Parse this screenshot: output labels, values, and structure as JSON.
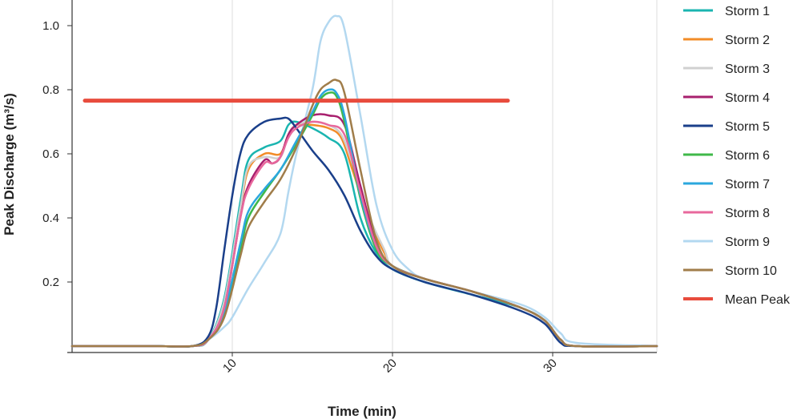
{
  "chart_data": {
    "type": "line",
    "xlabel": "Time (min)",
    "ylabel": "Peak Discharge  (m³/s)",
    "xlim": [
      0,
      36.5
    ],
    "ylim": [
      -0.02,
      1.08
    ],
    "x_ticks": [
      10,
      20,
      30
    ],
    "x_tick_labels": [
      "10",
      "20",
      "30"
    ],
    "y_ticks": [
      0.2,
      0.4,
      0.6,
      0.8,
      1.0
    ],
    "y_tick_labels": [
      "0.2",
      "0.4",
      "0.6",
      "0.8",
      "1.0"
    ],
    "grid": "vertical",
    "legend_position": "right",
    "series": [
      {
        "name": "Storm 1",
        "color": "#1ab5b0",
        "x": [
          0,
          5,
          7.5,
          8.5,
          9.5,
          10.5,
          11,
          12,
          13,
          13.5,
          14,
          15,
          16,
          17,
          18,
          19,
          20,
          22,
          25,
          28,
          29.5,
          30.5,
          31.5,
          36.5
        ],
        "y": [
          0,
          0,
          0,
          0.02,
          0.15,
          0.45,
          0.58,
          0.62,
          0.64,
          0.69,
          0.7,
          0.68,
          0.65,
          0.6,
          0.4,
          0.29,
          0.24,
          0.2,
          0.16,
          0.12,
          0.08,
          0.02,
          0,
          0
        ]
      },
      {
        "name": "Storm 2",
        "color": "#f28c28",
        "x": [
          0,
          5,
          7.5,
          8.5,
          9.5,
          10.5,
          11,
          12,
          13,
          13.5,
          14,
          15,
          16,
          16.8,
          17.5,
          18.5,
          19.5,
          20,
          22,
          25,
          28,
          29.5,
          30.5,
          31.5,
          36.5
        ],
        "y": [
          0,
          0,
          0,
          0.02,
          0.13,
          0.42,
          0.55,
          0.6,
          0.6,
          0.66,
          0.69,
          0.69,
          0.68,
          0.65,
          0.55,
          0.4,
          0.29,
          0.25,
          0.21,
          0.17,
          0.12,
          0.08,
          0.02,
          0,
          0
        ]
      },
      {
        "name": "Storm 3",
        "color": "#d0d0d0",
        "x": [
          0,
          5,
          7.5,
          8.5,
          9.5,
          10.5,
          11,
          12,
          13,
          13.5,
          14,
          15,
          16,
          16.8,
          17.5,
          18.5,
          19.5,
          20,
          22,
          25,
          28,
          29.5,
          30.5,
          31.5,
          36.5
        ],
        "y": [
          0,
          0,
          0,
          0.02,
          0.14,
          0.43,
          0.56,
          0.59,
          0.59,
          0.66,
          0.69,
          0.7,
          0.69,
          0.66,
          0.57,
          0.41,
          0.3,
          0.25,
          0.21,
          0.17,
          0.12,
          0.08,
          0.02,
          0,
          0
        ]
      },
      {
        "name": "Storm 4",
        "color": "#a8206e",
        "x": [
          0,
          5,
          7.5,
          8.5,
          9.5,
          10.5,
          11,
          12,
          12.5,
          13,
          13.5,
          14,
          15,
          16,
          17,
          18,
          19,
          20,
          22,
          25,
          28,
          29.5,
          30.5,
          31.5,
          36.5
        ],
        "y": [
          0,
          0,
          0,
          0.02,
          0.12,
          0.4,
          0.5,
          0.58,
          0.57,
          0.59,
          0.66,
          0.69,
          0.72,
          0.72,
          0.69,
          0.5,
          0.32,
          0.25,
          0.21,
          0.17,
          0.12,
          0.08,
          0.02,
          0,
          0
        ]
      },
      {
        "name": "Storm 5",
        "color": "#1a3f8a",
        "x": [
          0,
          5,
          7.5,
          8.5,
          9,
          9.5,
          10,
          10.5,
          11,
          12,
          13,
          13.5,
          14,
          15,
          16,
          17,
          18,
          19,
          20,
          22,
          25,
          28,
          29.5,
          30.5,
          31.5,
          36.5
        ],
        "y": [
          0,
          0,
          0,
          0.03,
          0.12,
          0.3,
          0.47,
          0.6,
          0.66,
          0.7,
          0.71,
          0.71,
          0.68,
          0.61,
          0.55,
          0.47,
          0.36,
          0.28,
          0.24,
          0.2,
          0.16,
          0.11,
          0.07,
          0.01,
          0,
          0
        ]
      },
      {
        "name": "Storm 6",
        "color": "#3fb84a",
        "x": [
          0,
          5,
          7.5,
          8.5,
          9.5,
          10.5,
          11,
          12,
          13,
          14,
          15,
          15.5,
          16,
          16.5,
          17,
          18,
          19,
          20,
          22,
          25,
          28,
          29.5,
          30.5,
          31.5,
          36.5
        ],
        "y": [
          0,
          0,
          0,
          0.02,
          0.1,
          0.3,
          0.4,
          0.48,
          0.55,
          0.63,
          0.72,
          0.77,
          0.79,
          0.78,
          0.7,
          0.46,
          0.3,
          0.25,
          0.21,
          0.17,
          0.12,
          0.08,
          0.02,
          0,
          0
        ]
      },
      {
        "name": "Storm 7",
        "color": "#2ba7de",
        "x": [
          0,
          5,
          7.5,
          8.5,
          9.5,
          10.5,
          11,
          12,
          13,
          14,
          15,
          15.5,
          16,
          16.5,
          17,
          18,
          19,
          20,
          22,
          25,
          28,
          29.5,
          30.5,
          31.5,
          36.5
        ],
        "y": [
          0,
          0,
          0,
          0.02,
          0.11,
          0.32,
          0.42,
          0.49,
          0.55,
          0.64,
          0.73,
          0.78,
          0.8,
          0.79,
          0.72,
          0.47,
          0.31,
          0.25,
          0.21,
          0.17,
          0.12,
          0.08,
          0.02,
          0,
          0
        ]
      },
      {
        "name": "Storm 8",
        "color": "#e8689c",
        "x": [
          0,
          5,
          7.5,
          8.5,
          9.5,
          10.5,
          11,
          12,
          12.5,
          13,
          13.5,
          14,
          15,
          16,
          17,
          18,
          19,
          20,
          22,
          25,
          28,
          29.5,
          30.5,
          31.5,
          36.5
        ],
        "y": [
          0,
          0,
          0,
          0.02,
          0.12,
          0.4,
          0.49,
          0.57,
          0.57,
          0.59,
          0.65,
          0.68,
          0.7,
          0.69,
          0.66,
          0.48,
          0.31,
          0.25,
          0.21,
          0.17,
          0.12,
          0.08,
          0.02,
          0,
          0
        ]
      },
      {
        "name": "Storm 9",
        "color": "#b3d8f0",
        "x": [
          0,
          5,
          7.5,
          8.5,
          9.5,
          10,
          11,
          12,
          13,
          13.5,
          14,
          15,
          15.5,
          16,
          16.5,
          17,
          18,
          19,
          20,
          21,
          22,
          25,
          28,
          29.5,
          30.5,
          31.5,
          36.5
        ],
        "y": [
          0,
          0,
          0,
          0.02,
          0.06,
          0.09,
          0.18,
          0.26,
          0.35,
          0.48,
          0.6,
          0.8,
          0.95,
          1.01,
          1.03,
          0.99,
          0.72,
          0.44,
          0.3,
          0.24,
          0.21,
          0.17,
          0.13,
          0.09,
          0.04,
          0.01,
          0
        ]
      },
      {
        "name": "Storm 10",
        "color": "#a07d4a",
        "x": [
          0,
          5,
          7.5,
          8.5,
          9.5,
          10.5,
          11,
          12,
          13,
          14,
          15,
          15.5,
          16,
          16.5,
          17,
          18,
          19,
          20,
          22,
          25,
          28,
          29.5,
          30.5,
          31.5,
          36.5
        ],
        "y": [
          0,
          0,
          0,
          0.02,
          0.09,
          0.28,
          0.37,
          0.45,
          0.52,
          0.62,
          0.75,
          0.8,
          0.82,
          0.83,
          0.79,
          0.55,
          0.33,
          0.25,
          0.21,
          0.17,
          0.12,
          0.08,
          0.02,
          0,
          0
        ]
      },
      {
        "name": "Mean Peak",
        "color": "#e84c3d",
        "x": [
          0.8,
          27.2
        ],
        "y": [
          0.766,
          0.766
        ]
      }
    ]
  }
}
